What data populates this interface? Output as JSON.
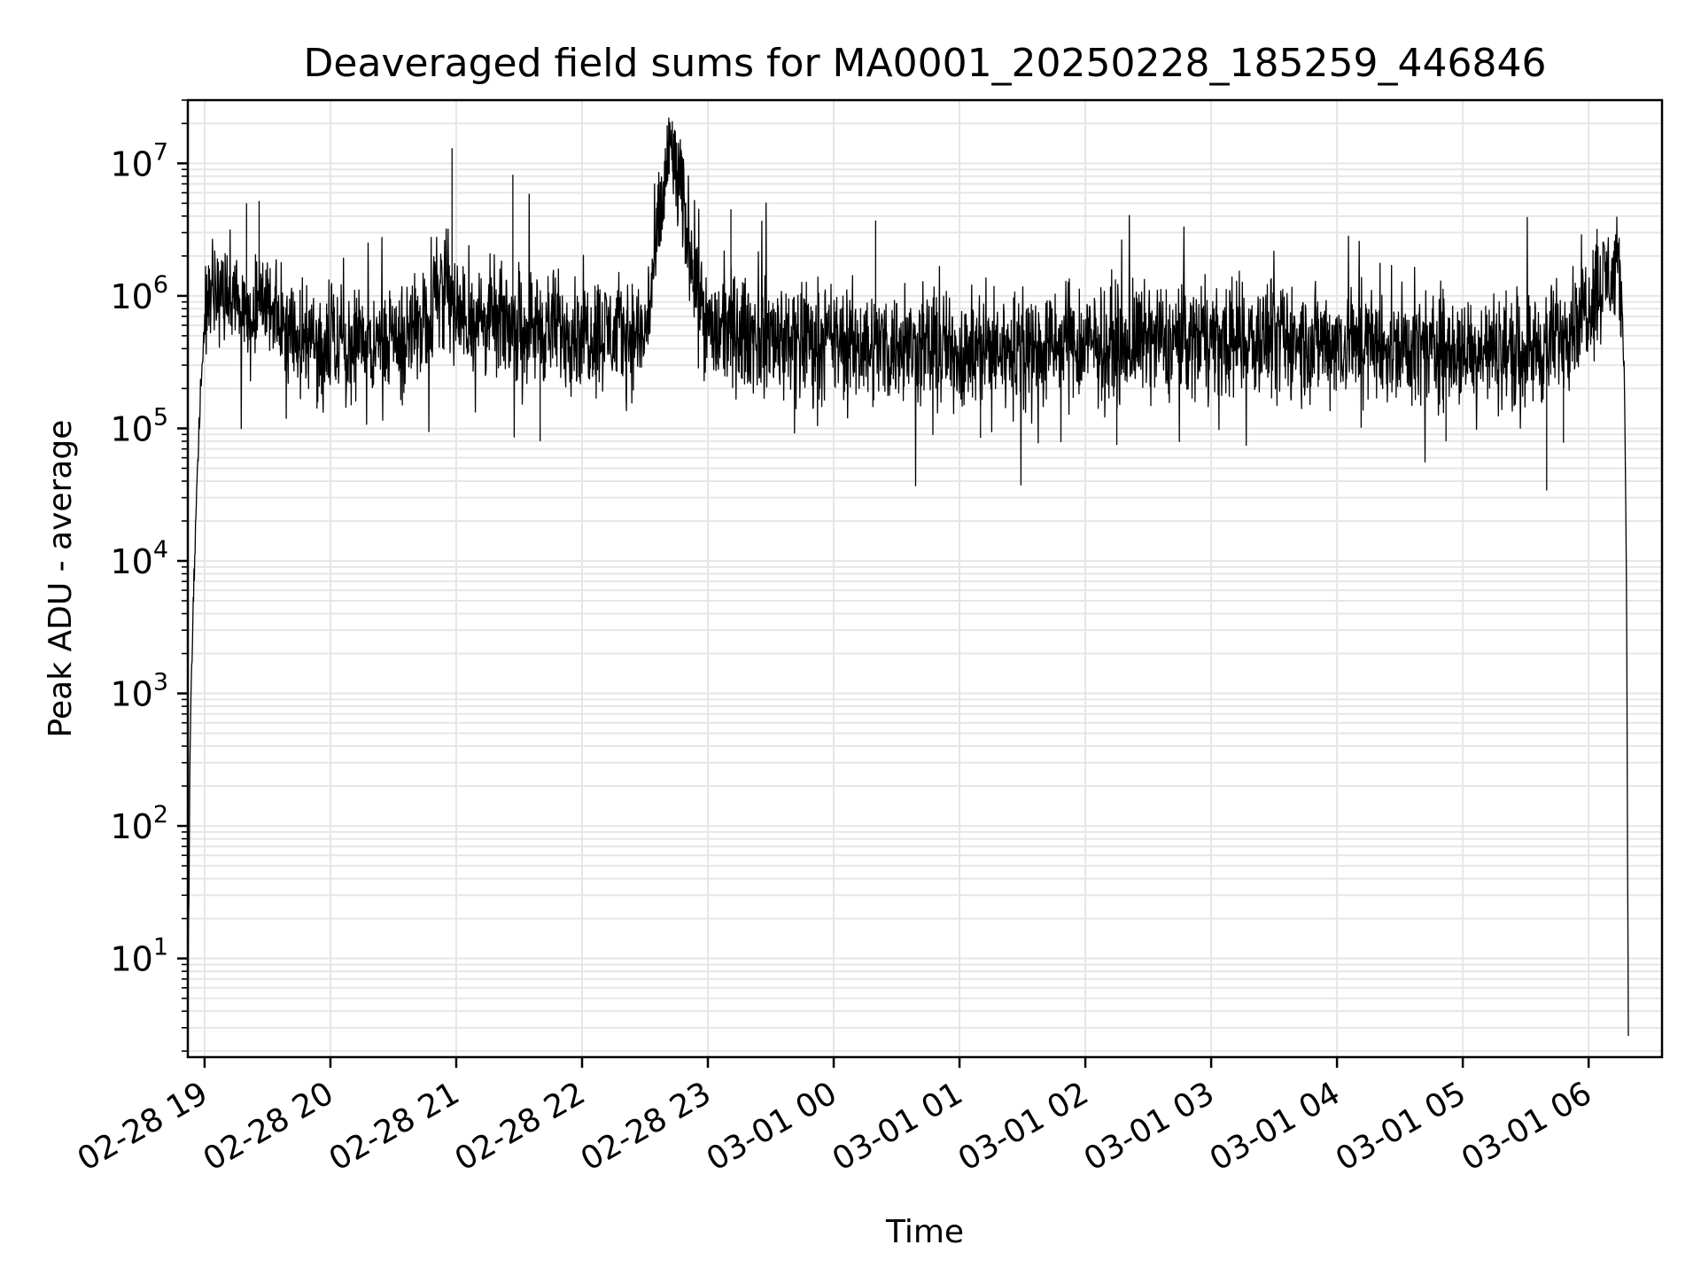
{
  "chart_data": {
    "type": "line",
    "title": "Deaveraged field sums for MA0001_20250228_185259_446846",
    "xlabel": "Time",
    "ylabel": "Peak ADU - average",
    "yscale": "log",
    "ylim": [
      1.8,
      30000000
    ],
    "xlim": [
      "2025-02-28 18:52",
      "2025-03-01 06:35"
    ],
    "grid": true,
    "x_ticks": [
      {
        "time": "2025-02-28 19:00",
        "label": "02-28 19"
      },
      {
        "time": "2025-02-28 20:00",
        "label": "02-28 20"
      },
      {
        "time": "2025-02-28 21:00",
        "label": "02-28 21"
      },
      {
        "time": "2025-02-28 22:00",
        "label": "02-28 22"
      },
      {
        "time": "2025-02-28 23:00",
        "label": "02-28 23"
      },
      {
        "time": "2025-03-01 00:00",
        "label": "03-01 00"
      },
      {
        "time": "2025-03-01 01:00",
        "label": "03-01 01"
      },
      {
        "time": "2025-03-01 02:00",
        "label": "03-01 02"
      },
      {
        "time": "2025-03-01 03:00",
        "label": "03-01 03"
      },
      {
        "time": "2025-03-01 04:00",
        "label": "03-01 04"
      },
      {
        "time": "2025-03-01 05:00",
        "label": "03-01 05"
      },
      {
        "time": "2025-03-01 06:00",
        "label": "03-01 06"
      }
    ],
    "y_ticks": [
      {
        "value": 10,
        "base": "10",
        "exp": "1"
      },
      {
        "value": 100,
        "base": "10",
        "exp": "2"
      },
      {
        "value": 1000,
        "base": "10",
        "exp": "3"
      },
      {
        "value": 10000,
        "base": "10",
        "exp": "4"
      },
      {
        "value": 100000,
        "base": "10",
        "exp": "5"
      },
      {
        "value": 1000000,
        "base": "10",
        "exp": "6"
      },
      {
        "value": 10000000,
        "base": "10",
        "exp": "7"
      }
    ],
    "series": [
      {
        "color": "#000000",
        "points": [
          {
            "t": "2025-02-28 18:52",
            "y": 3
          },
          {
            "t": "2025-02-28 18:53",
            "y": 300
          },
          {
            "t": "2025-02-28 18:54",
            "y": 2000
          },
          {
            "t": "2025-02-28 18:55",
            "y": 8000
          },
          {
            "t": "2025-02-28 18:56",
            "y": 20000
          },
          {
            "t": "2025-02-28 18:57",
            "y": 80000
          },
          {
            "t": "2025-02-28 18:58",
            "y": 180000
          },
          {
            "t": "2025-02-28 19:00",
            "y": 700000
          },
          {
            "t": "2025-02-28 19:10",
            "y": 1200000
          },
          {
            "t": "2025-02-28 19:20",
            "y": 600000
          },
          {
            "t": "2025-02-28 19:30",
            "y": 900000
          },
          {
            "t": "2025-02-28 19:40",
            "y": 500000
          },
          {
            "t": "2025-02-28 20:00",
            "y": 450000
          },
          {
            "t": "2025-02-28 20:20",
            "y": 400000
          },
          {
            "t": "2025-02-28 20:40",
            "y": 500000
          },
          {
            "t": "2025-02-28 20:55",
            "y": 1500000
          },
          {
            "t": "2025-02-28 21:00",
            "y": 700000
          },
          {
            "t": "2025-02-28 21:30",
            "y": 600000
          },
          {
            "t": "2025-02-28 22:00",
            "y": 550000
          },
          {
            "t": "2025-02-28 22:30",
            "y": 500000
          },
          {
            "t": "2025-02-28 22:42",
            "y": 14000000
          },
          {
            "t": "2025-02-28 23:00",
            "y": 550000
          },
          {
            "t": "2025-03-01 00:00",
            "y": 450000
          },
          {
            "t": "2025-03-01 01:00",
            "y": 380000
          },
          {
            "t": "2025-03-01 02:00",
            "y": 420000
          },
          {
            "t": "2025-03-01 03:00",
            "y": 480000
          },
          {
            "t": "2025-03-01 04:00",
            "y": 450000
          },
          {
            "t": "2025-03-01 05:00",
            "y": 380000
          },
          {
            "t": "2025-03-01 05:40",
            "y": 400000
          },
          {
            "t": "2025-03-01 06:00",
            "y": 900000
          },
          {
            "t": "2025-03-01 06:10",
            "y": 1500000
          },
          {
            "t": "2025-03-01 06:15",
            "y": 1300000
          },
          {
            "t": "2025-03-01 06:17",
            "y": 300000
          },
          {
            "t": "2025-03-01 06:18",
            "y": 10000
          },
          {
            "t": "2025-03-01 06:19",
            "y": 2
          }
        ],
        "spikes": [
          {
            "t": "2025-02-28 19:20",
            "y": 5000000
          },
          {
            "t": "2025-02-28 19:26",
            "y": 5200000
          },
          {
            "t": "2025-02-28 20:58",
            "y": 13000000
          },
          {
            "t": "2025-02-28 21:27",
            "y": 8200000
          },
          {
            "t": "2025-02-28 22:41",
            "y": 14500000
          },
          {
            "t": "2025-02-28 22:43",
            "y": 13000000
          },
          {
            "t": "2025-02-28 23:11",
            "y": 4500000
          },
          {
            "t": "2025-03-01 00:20",
            "y": 3700000
          },
          {
            "t": "2025-03-01 06:04",
            "y": 3200000
          },
          {
            "t": "2025-02-28 21:40",
            "y": 80000
          },
          {
            "t": "2025-03-01 01:10",
            "y": 85000
          },
          {
            "t": "2025-03-01 02:15",
            "y": 75000
          },
          {
            "t": "2025-03-01 05:40",
            "y": 34000
          },
          {
            "t": "2025-03-01 04:52",
            "y": 80000
          },
          {
            "t": "2025-03-01 05:48",
            "y": 78000
          }
        ]
      }
    ]
  }
}
